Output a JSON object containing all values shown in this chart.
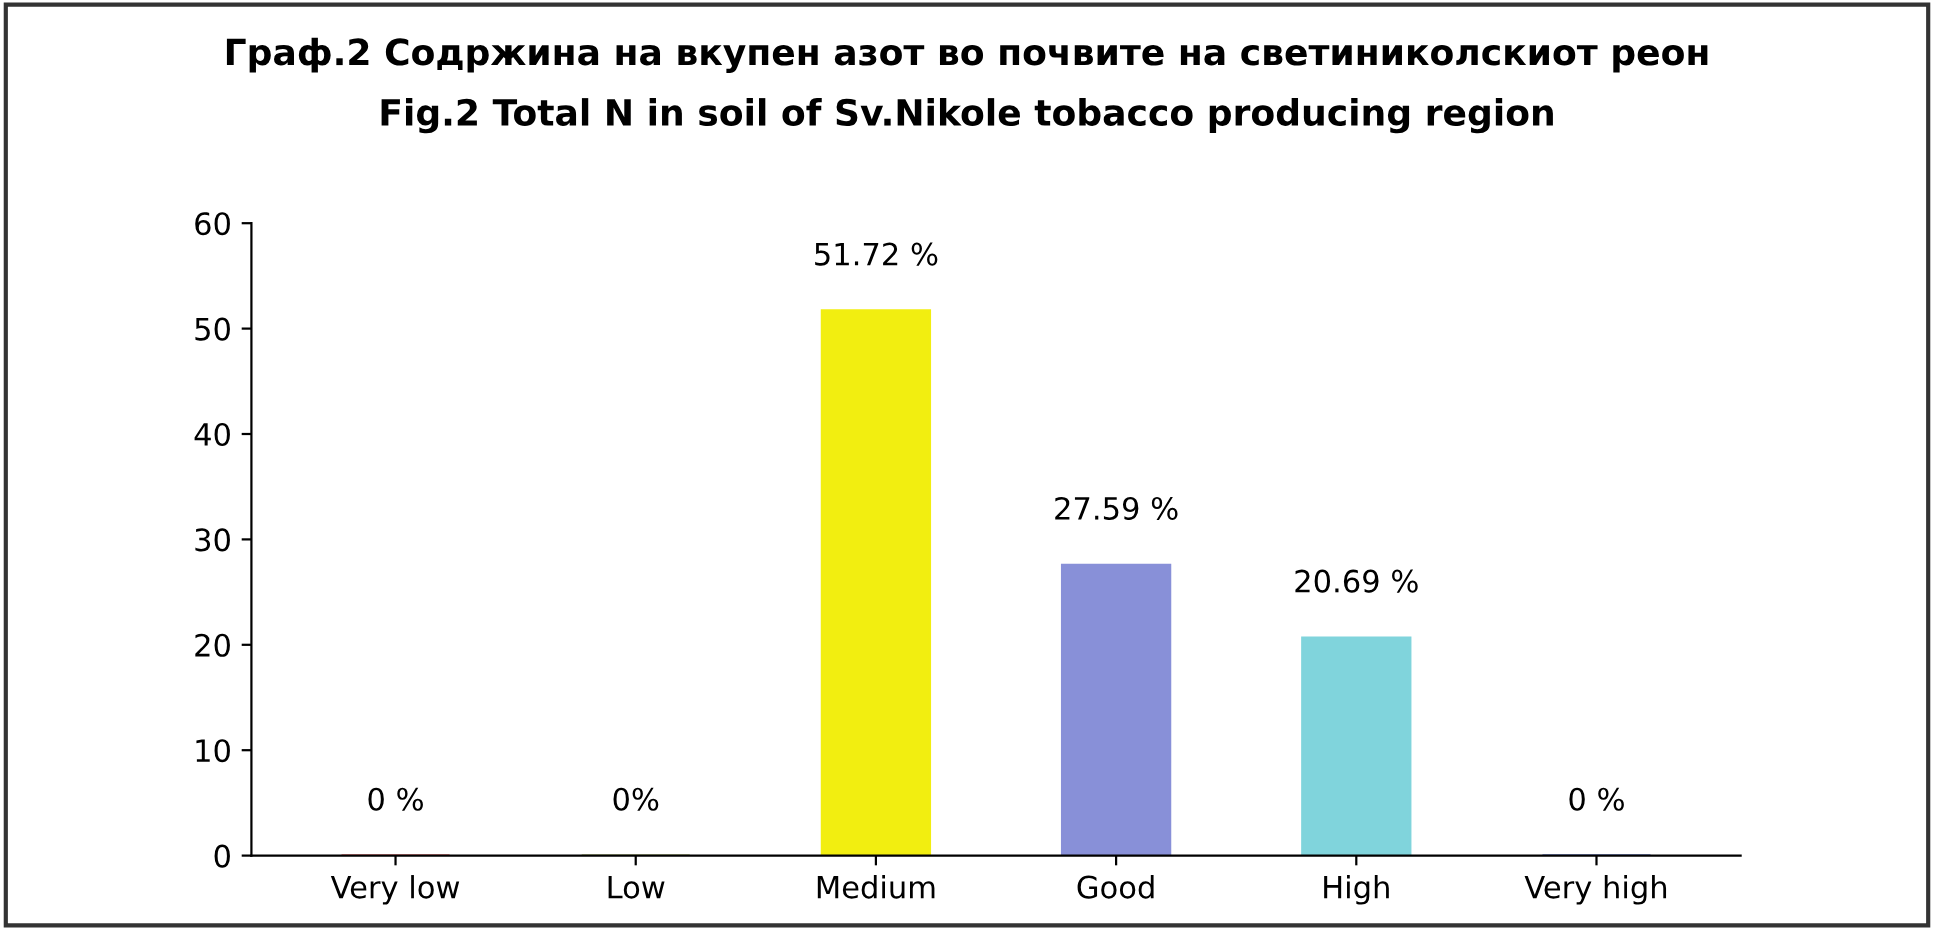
{
  "chart_data": {
    "type": "bar",
    "title": "Граф.2 Содржина на вкупен азот во почвите на светиниколскиот реон",
    "subtitle": "Fig.2 Total N in soil of Sv.Nikole tobacco producing region",
    "categories": [
      "Very low",
      "Low",
      "Medium",
      "Good",
      "High",
      "Very high"
    ],
    "values": [
      0,
      0,
      51.72,
      27.59,
      20.69,
      0
    ],
    "value_labels": [
      "0 %",
      "0%",
      "51.72 %",
      "27.59 %",
      "20.69 %",
      "0 %"
    ],
    "colors": [
      "#e02828",
      "#8da040",
      "#f2ee10",
      "#8890d8",
      "#80d4dc",
      "#2040b0"
    ],
    "ylim": [
      0,
      60
    ],
    "yticks": [
      0,
      10,
      20,
      30,
      40,
      50,
      60
    ],
    "grid": false
  }
}
